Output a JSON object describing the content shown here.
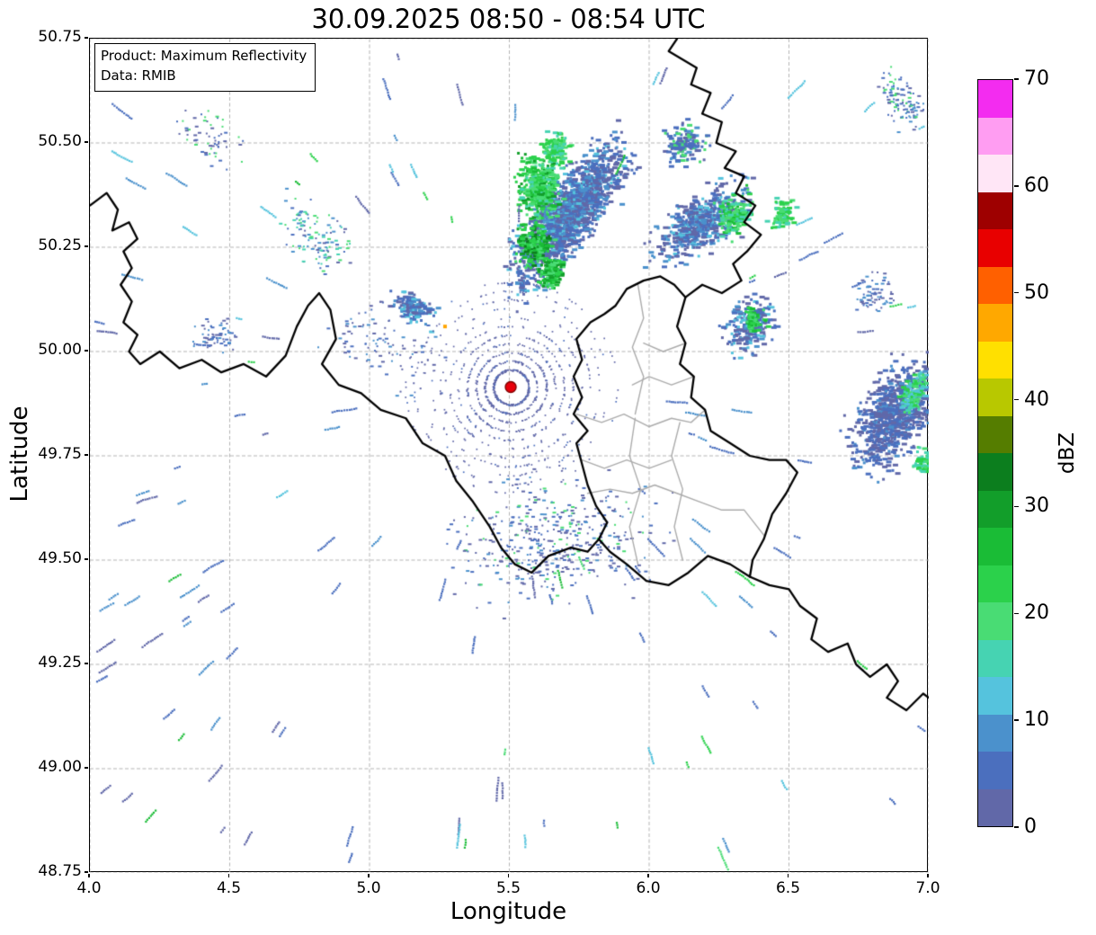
{
  "chart_data": {
    "type": "heatmap",
    "title": "30.09.2025 08:50 - 08:54 UTC",
    "xlabel": "Longitude",
    "ylabel": "Latitude",
    "xlim": [
      4.0,
      7.0
    ],
    "ylim": [
      48.75,
      50.75
    ],
    "xticks": [
      4.0,
      4.5,
      5.0,
      5.5,
      6.0,
      6.5,
      7.0
    ],
    "xtick_labels": [
      "4.0",
      "4.5",
      "5.0",
      "5.5",
      "6.0",
      "6.5",
      "7.0"
    ],
    "yticks": [
      50.75,
      50.5,
      50.25,
      50.0,
      49.75,
      49.5,
      49.25,
      49.0,
      48.75
    ],
    "ytick_labels": [
      "50.75",
      "50.50",
      "50.25",
      "50.00",
      "49.75",
      "49.50",
      "49.25",
      "49.00",
      "48.75"
    ],
    "grid": {
      "style": "dashed",
      "color": "#b3b3b3"
    },
    "annotation": {
      "product_line": "Product: Maximum Reflectivity",
      "data_line": "Data: RMIB"
    },
    "product": "Maximum Reflectivity",
    "data_source": "RMIB",
    "datetime_utc": "30.09.2025 08:50 - 08:54",
    "radar_site": {
      "lon": 5.505,
      "lat": 49.915,
      "color": "#e8000b"
    },
    "colorbar": {
      "label": "dBZ",
      "min": 0,
      "max": 70,
      "ticks": [
        0,
        10,
        20,
        30,
        40,
        50,
        60,
        70
      ],
      "tick_labels": [
        "0",
        "10",
        "20",
        "30",
        "40",
        "50",
        "60",
        "70"
      ],
      "colors": [
        "#6168a8",
        "#4b6fbe",
        "#4b91cc",
        "#55c3dd",
        "#46d3b2",
        "#49dc74",
        "#2bd14b",
        "#1abc36",
        "#129e2a",
        "#0c7e1e",
        "#557d00",
        "#b8c800",
        "#ffe000",
        "#ffa800",
        "#ff6000",
        "#e80000",
        "#9e0000",
        "#ffe6f6",
        "#ff9df2",
        "#f32cf0"
      ]
    },
    "borders": {
      "country": [
        [
          [
            4.0,
            50.35
          ],
          [
            4.06,
            50.38
          ],
          [
            4.1,
            50.34
          ],
          [
            4.08,
            50.29
          ],
          [
            4.14,
            50.31
          ],
          [
            4.17,
            50.27
          ],
          [
            4.12,
            50.24
          ],
          [
            4.15,
            50.2
          ],
          [
            4.11,
            50.16
          ],
          [
            4.15,
            50.12
          ],
          [
            4.12,
            50.07
          ],
          [
            4.17,
            50.04
          ],
          [
            4.14,
            50.0
          ],
          [
            4.18,
            49.97
          ],
          [
            4.25,
            50.0
          ],
          [
            4.32,
            49.96
          ],
          [
            4.4,
            49.98
          ],
          [
            4.47,
            49.95
          ],
          [
            4.55,
            49.97
          ],
          [
            4.63,
            49.94
          ],
          [
            4.7,
            49.99
          ],
          [
            4.74,
            50.06
          ],
          [
            4.78,
            50.11
          ],
          [
            4.82,
            50.14
          ],
          [
            4.86,
            50.1
          ],
          [
            4.88,
            50.03
          ],
          [
            4.83,
            49.97
          ],
          [
            4.89,
            49.92
          ],
          [
            4.97,
            49.9
          ],
          [
            5.04,
            49.86
          ],
          [
            5.13,
            49.84
          ],
          [
            5.19,
            49.78
          ],
          [
            5.27,
            49.75
          ],
          [
            5.31,
            49.69
          ],
          [
            5.37,
            49.64
          ],
          [
            5.43,
            49.58
          ],
          [
            5.47,
            49.53
          ],
          [
            5.52,
            49.49
          ],
          [
            5.58,
            49.47
          ],
          [
            5.64,
            49.51
          ],
          [
            5.72,
            49.53
          ],
          [
            5.78,
            49.52
          ],
          [
            5.82,
            49.55
          ]
        ],
        [
          [
            5.98,
            50.17
          ],
          [
            6.04,
            50.18
          ],
          [
            6.09,
            50.16
          ],
          [
            6.13,
            50.13
          ],
          [
            6.1,
            50.06
          ],
          [
            6.13,
            50.02
          ],
          [
            6.11,
            49.97
          ],
          [
            6.16,
            49.94
          ],
          [
            6.15,
            49.89
          ],
          [
            6.2,
            49.86
          ],
          [
            6.22,
            49.81
          ],
          [
            6.29,
            49.78
          ],
          [
            6.36,
            49.75
          ],
          [
            6.43,
            49.74
          ],
          [
            6.49,
            49.74
          ],
          [
            6.53,
            49.71
          ],
          [
            6.49,
            49.66
          ],
          [
            6.44,
            49.61
          ],
          [
            6.41,
            49.55
          ],
          [
            6.37,
            49.5
          ],
          [
            6.36,
            49.46
          ],
          [
            6.29,
            49.49
          ],
          [
            6.21,
            49.51
          ],
          [
            6.14,
            49.47
          ],
          [
            6.07,
            49.44
          ],
          [
            5.99,
            49.45
          ],
          [
            5.92,
            49.49
          ],
          [
            5.86,
            49.52
          ],
          [
            5.82,
            49.55
          ],
          [
            5.85,
            49.59
          ],
          [
            5.81,
            49.63
          ],
          [
            5.78,
            49.68
          ],
          [
            5.76,
            49.73
          ],
          [
            5.74,
            49.78
          ],
          [
            5.78,
            49.81
          ],
          [
            5.73,
            49.85
          ],
          [
            5.76,
            49.89
          ],
          [
            5.73,
            49.94
          ],
          [
            5.76,
            49.98
          ],
          [
            5.74,
            50.03
          ],
          [
            5.79,
            50.07
          ],
          [
            5.84,
            50.09
          ],
          [
            5.88,
            50.11
          ],
          [
            5.92,
            50.15
          ],
          [
            5.98,
            50.17
          ]
        ],
        [
          [
            6.1,
            50.75
          ],
          [
            6.07,
            50.72
          ],
          [
            6.12,
            50.7
          ],
          [
            6.17,
            50.68
          ],
          [
            6.15,
            50.64
          ],
          [
            6.22,
            50.62
          ],
          [
            6.19,
            50.57
          ],
          [
            6.26,
            50.55
          ],
          [
            6.24,
            50.5
          ],
          [
            6.31,
            50.48
          ],
          [
            6.27,
            50.44
          ],
          [
            6.34,
            50.42
          ],
          [
            6.31,
            50.38
          ],
          [
            6.38,
            50.35
          ],
          [
            6.34,
            50.31
          ],
          [
            6.4,
            50.28
          ],
          [
            6.35,
            50.24
          ],
          [
            6.3,
            50.21
          ],
          [
            6.33,
            50.17
          ],
          [
            6.26,
            50.14
          ],
          [
            6.19,
            50.16
          ],
          [
            6.13,
            50.13
          ]
        ],
        [
          [
            6.36,
            49.46
          ],
          [
            6.43,
            49.44
          ],
          [
            6.5,
            49.43
          ],
          [
            6.54,
            49.39
          ],
          [
            6.6,
            49.36
          ],
          [
            6.58,
            49.31
          ],
          [
            6.64,
            49.28
          ],
          [
            6.71,
            49.3
          ],
          [
            6.74,
            49.25
          ],
          [
            6.79,
            49.22
          ],
          [
            6.85,
            49.25
          ],
          [
            6.89,
            49.21
          ],
          [
            6.85,
            49.17
          ],
          [
            6.92,
            49.14
          ],
          [
            6.98,
            49.18
          ],
          [
            7.0,
            49.17
          ]
        ]
      ],
      "district": [
        [
          [
            5.74,
            49.85
          ],
          [
            5.83,
            49.83
          ],
          [
            5.91,
            49.85
          ],
          [
            6.0,
            49.82
          ],
          [
            6.08,
            49.84
          ],
          [
            6.15,
            49.83
          ],
          [
            6.2,
            49.86
          ]
        ],
        [
          [
            5.96,
            50.16
          ],
          [
            5.98,
            50.08
          ],
          [
            5.94,
            50.01
          ],
          [
            5.98,
            49.94
          ],
          [
            5.95,
            49.85
          ]
        ],
        [
          [
            5.95,
            49.84
          ],
          [
            5.93,
            49.75
          ],
          [
            5.97,
            49.67
          ],
          [
            5.93,
            49.58
          ],
          [
            5.96,
            49.49
          ]
        ],
        [
          [
            6.11,
            49.83
          ],
          [
            6.08,
            49.75
          ],
          [
            6.12,
            49.67
          ],
          [
            6.09,
            49.58
          ],
          [
            6.12,
            49.5
          ]
        ],
        [
          [
            5.78,
            49.66
          ],
          [
            5.86,
            49.67
          ],
          [
            5.94,
            49.66
          ],
          [
            6.02,
            49.68
          ],
          [
            6.1,
            49.66
          ],
          [
            6.18,
            49.64
          ],
          [
            6.26,
            49.62
          ],
          [
            6.34,
            49.62
          ],
          [
            6.41,
            49.56
          ]
        ],
        [
          [
            5.76,
            49.74
          ],
          [
            5.84,
            49.72
          ],
          [
            5.92,
            49.74
          ],
          [
            6.0,
            49.72
          ],
          [
            6.08,
            49.74
          ]
        ],
        [
          [
            6.16,
            49.94
          ],
          [
            6.08,
            49.92
          ],
          [
            6.0,
            49.94
          ],
          [
            5.94,
            49.92
          ]
        ],
        [
          [
            6.13,
            50.02
          ],
          [
            6.05,
            50.0
          ],
          [
            5.98,
            50.02
          ]
        ]
      ]
    },
    "echo_regions": [
      {
        "name": "north-band",
        "cx": 5.7,
        "cy": 50.33,
        "rx": 0.33,
        "ry": 0.11,
        "rot": 38,
        "n": 1500,
        "px": 3,
        "lv": [
          0,
          0,
          0,
          1,
          1,
          1,
          2,
          2,
          3
        ],
        "seed": 101
      },
      {
        "name": "north-band-core-1",
        "cx": 5.6,
        "cy": 50.4,
        "rx": 0.1,
        "ry": 0.1,
        "rot": 0,
        "n": 380,
        "px": 3,
        "lv": [
          4,
          5,
          5,
          6,
          6,
          7,
          8
        ],
        "seed": 102
      },
      {
        "name": "north-band-core-2",
        "cx": 5.58,
        "cy": 50.26,
        "rx": 0.08,
        "ry": 0.07,
        "rot": 0,
        "n": 230,
        "px": 3,
        "lv": [
          5,
          6,
          6,
          7,
          8,
          9
        ],
        "seed": 103
      },
      {
        "name": "north-band-core-3",
        "cx": 5.66,
        "cy": 50.49,
        "rx": 0.06,
        "ry": 0.06,
        "rot": 0,
        "n": 130,
        "px": 3,
        "lv": [
          4,
          5,
          6,
          6
        ],
        "seed": 104
      },
      {
        "name": "north-band-core-4",
        "cx": 5.64,
        "cy": 50.19,
        "rx": 0.06,
        "ry": 0.05,
        "rot": 0,
        "n": 140,
        "px": 3,
        "lv": [
          5,
          6,
          7,
          8
        ],
        "seed": 122
      },
      {
        "name": "ne-extension",
        "cx": 6.18,
        "cy": 50.31,
        "rx": 0.24,
        "ry": 0.09,
        "rot": 20,
        "n": 520,
        "px": 3,
        "lv": [
          0,
          0,
          0,
          1,
          1,
          2,
          2,
          3
        ],
        "seed": 105
      },
      {
        "name": "ne-extension-green",
        "cx": 6.3,
        "cy": 50.33,
        "rx": 0.09,
        "ry": 0.06,
        "rot": 20,
        "n": 140,
        "px": 3,
        "lv": [
          4,
          5,
          5,
          6,
          7
        ],
        "seed": 106
      },
      {
        "name": "ne-upper-specks",
        "cx": 6.12,
        "cy": 50.5,
        "rx": 0.12,
        "ry": 0.07,
        "rot": 10,
        "n": 140,
        "px": 3,
        "lv": [
          0,
          1,
          1,
          2,
          5
        ],
        "seed": 123
      },
      {
        "name": "border-green-cluster",
        "cx": 6.47,
        "cy": 50.33,
        "rx": 0.07,
        "ry": 0.05,
        "rot": 0,
        "n": 80,
        "px": 3,
        "lv": [
          4,
          5,
          6
        ],
        "seed": 124
      },
      {
        "name": "east-cluster",
        "cx": 6.35,
        "cy": 50.06,
        "rx": 0.12,
        "ry": 0.09,
        "rot": 20,
        "n": 240,
        "px": 3,
        "lv": [
          0,
          0,
          1,
          1,
          2,
          3
        ],
        "seed": 107
      },
      {
        "name": "east-cluster-green",
        "cx": 6.37,
        "cy": 50.08,
        "rx": 0.05,
        "ry": 0.04,
        "rot": 0,
        "n": 60,
        "px": 3,
        "lv": [
          5,
          6,
          7
        ],
        "seed": 108
      },
      {
        "name": "right-band",
        "cx": 6.87,
        "cy": 49.85,
        "rx": 0.22,
        "ry": 0.13,
        "rot": 35,
        "n": 780,
        "px": 3,
        "lv": [
          0,
          0,
          0,
          1,
          1,
          1,
          2
        ],
        "seed": 109
      },
      {
        "name": "right-band-green-1",
        "cx": 6.94,
        "cy": 49.9,
        "rx": 0.08,
        "ry": 0.05,
        "rot": 35,
        "n": 130,
        "px": 3,
        "lv": [
          3,
          4,
          5,
          6
        ],
        "seed": 110
      },
      {
        "name": "right-band-green-2",
        "cx": 6.98,
        "cy": 49.74,
        "rx": 0.05,
        "ry": 0.04,
        "rot": 0,
        "n": 70,
        "px": 3,
        "lv": [
          4,
          5,
          6
        ],
        "seed": 111
      },
      {
        "name": "west-specks",
        "cx": 4.8,
        "cy": 50.28,
        "rx": 0.18,
        "ry": 0.1,
        "rot": -25,
        "n": 120,
        "px": 2,
        "lv": [
          0,
          1,
          2,
          4,
          5
        ],
        "seed": 112
      },
      {
        "name": "west-specks-2",
        "cx": 4.45,
        "cy": 50.04,
        "rx": 0.11,
        "ry": 0.06,
        "rot": 0,
        "n": 60,
        "px": 2,
        "lv": [
          0,
          1,
          2
        ],
        "seed": 113
      },
      {
        "name": "west-cluster",
        "cx": 5.15,
        "cy": 50.11,
        "rx": 0.1,
        "ry": 0.05,
        "rot": -15,
        "n": 130,
        "px": 3,
        "lv": [
          0,
          1,
          1,
          2,
          3
        ],
        "seed": 114
      },
      {
        "name": "south-specks",
        "cx": 5.65,
        "cy": 49.55,
        "rx": 0.5,
        "ry": 0.2,
        "rot": 3,
        "n": 430,
        "px": 2,
        "lv": [
          0,
          0,
          0,
          1,
          1,
          2,
          5
        ],
        "seed": 115
      },
      {
        "name": "mid-west-specks",
        "cx": 5.05,
        "cy": 50.02,
        "rx": 0.3,
        "ry": 0.12,
        "rot": -15,
        "n": 100,
        "px": 2,
        "lv": [
          0,
          0,
          1,
          2
        ],
        "seed": 116
      },
      {
        "name": "top-right-specks",
        "cx": 6.9,
        "cy": 50.6,
        "rx": 0.12,
        "ry": 0.08,
        "rot": -30,
        "n": 110,
        "px": 2,
        "lv": [
          0,
          1,
          1,
          2,
          5
        ],
        "seed": 117
      },
      {
        "name": "right-mid-specks",
        "cx": 6.8,
        "cy": 50.14,
        "rx": 0.08,
        "ry": 0.06,
        "rot": 0,
        "n": 70,
        "px": 2,
        "lv": [
          0,
          1,
          2
        ],
        "seed": 118
      },
      {
        "name": "northwest-specks",
        "cx": 4.42,
        "cy": 50.52,
        "rx": 0.16,
        "ry": 0.08,
        "rot": -20,
        "n": 60,
        "px": 2,
        "lv": [
          0,
          1,
          5
        ],
        "seed": 119
      }
    ],
    "radar_clutter": {
      "cx": 5.505,
      "cy": 49.915,
      "rmin": 0.04,
      "rmax": 0.26,
      "ring_step": 0.021,
      "n": 1100,
      "seed": 888
    },
    "noise_streaks": {
      "n": 150,
      "seed": 777,
      "exclusion_radius_px": 175,
      "dot_size": 2.2
    },
    "special_points": [
      {
        "lon": 5.27,
        "lat": 50.06,
        "color": "#ffa500",
        "size": 4
      }
    ]
  }
}
